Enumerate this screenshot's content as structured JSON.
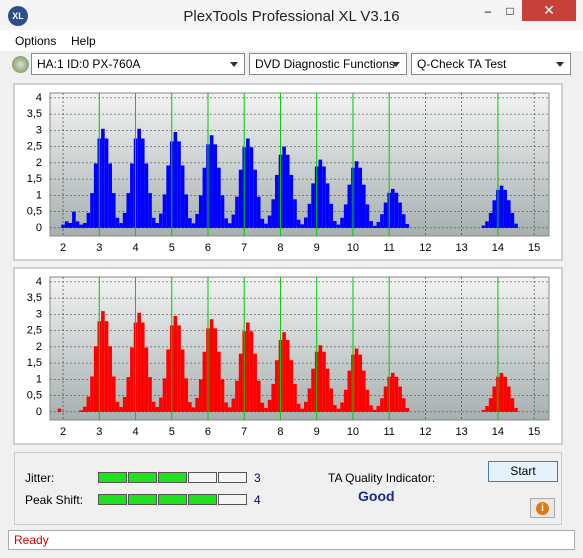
{
  "window": {
    "title": "PlexTools Professional XL V3.16",
    "icon": "XL"
  },
  "menu": [
    "Options",
    "Help"
  ],
  "toolbar": {
    "drive": "HA:1 ID:0  PX-760A",
    "function": "DVD Diagnostic Functions",
    "test": "Q-Check TA Test"
  },
  "chart_data": [
    {
      "type": "bar",
      "color": "#0000ff",
      "marker_color": "#00d000",
      "grid": true,
      "xlim": [
        1.64,
        15.41
      ],
      "ylim": [
        -0.25,
        4.15
      ],
      "xticks": [
        2,
        3,
        4,
        5,
        6,
        7,
        8,
        9,
        10,
        11,
        12,
        13,
        14,
        15
      ],
      "yticks": [
        0,
        {
          "value": 0.5,
          "label": "0,5"
        },
        1,
        {
          "value": 1.5,
          "label": "1,5"
        },
        2,
        {
          "value": 2.5,
          "label": "2,5"
        },
        3,
        {
          "value": 3.5,
          "label": "3,5"
        },
        4
      ],
      "markers": [
        3,
        4,
        5,
        6,
        7,
        8,
        9,
        10,
        11,
        14
      ],
      "x": [
        1.9,
        2.0,
        2.1,
        2.2,
        2.3,
        2.4,
        2.5,
        2.6,
        2.7,
        2.8,
        2.9,
        3.0,
        3.1,
        3.2,
        3.3,
        3.4,
        3.5,
        3.6,
        3.7,
        3.8,
        3.9,
        4.0,
        4.1,
        4.2,
        4.3,
        4.4,
        4.5,
        4.6,
        4.7,
        4.8,
        4.9,
        5.0,
        5.1,
        5.2,
        5.3,
        5.4,
        5.5,
        5.6,
        5.7,
        5.8,
        5.9,
        6.0,
        6.1,
        6.2,
        6.3,
        6.4,
        6.5,
        6.6,
        6.7,
        6.8,
        6.9,
        7.0,
        7.1,
        7.2,
        7.3,
        7.4,
        7.5,
        7.6,
        7.7,
        7.8,
        7.9,
        8.0,
        8.1,
        8.2,
        8.3,
        8.4,
        8.5,
        8.6,
        8.7,
        8.8,
        8.9,
        9.0,
        9.1,
        9.2,
        9.3,
        9.4,
        9.5,
        9.6,
        9.7,
        9.8,
        9.9,
        10.0,
        10.1,
        10.2,
        10.3,
        10.4,
        10.5,
        10.6,
        10.7,
        10.8,
        10.9,
        11.0,
        11.1,
        11.2,
        11.3,
        11.4,
        11.5,
        11.6,
        11.7,
        11.8,
        11.9,
        12.0,
        12.1,
        12.2,
        12.3,
        12.4,
        12.5,
        12.6,
        12.7,
        12.8,
        12.9,
        13.0,
        13.1,
        13.2,
        13.3,
        13.4,
        13.5,
        13.6,
        13.7,
        13.8,
        13.9,
        14.0,
        14.1,
        14.2,
        14.3,
        14.4,
        14.5
      ],
      "values": [
        0,
        0.1,
        0.2,
        0.15,
        0.5,
        0.2,
        0.1,
        0.15,
        0.46,
        1.07,
        1.98,
        2.75,
        3.05,
        2.75,
        1.98,
        1.07,
        0.31,
        0.15,
        0.46,
        1.07,
        1.98,
        2.75,
        3.05,
        2.75,
        1.98,
        1.07,
        0.31,
        0.15,
        0.44,
        1.03,
        1.92,
        2.66,
        2.95,
        2.66,
        1.92,
        1.03,
        0.3,
        0.14,
        0.43,
        1.0,
        1.85,
        2.57,
        2.85,
        2.57,
        1.85,
        1.0,
        0.29,
        0.14,
        0.41,
        0.96,
        1.79,
        2.48,
        2.75,
        2.48,
        1.79,
        0.96,
        0.28,
        0.13,
        0.38,
        0.88,
        1.63,
        2.25,
        2.5,
        2.25,
        1.63,
        0.88,
        0.25,
        0.11,
        0.32,
        0.74,
        1.37,
        1.89,
        2.1,
        1.89,
        1.37,
        0.74,
        0.21,
        0.1,
        0.31,
        0.72,
        1.33,
        1.85,
        2.05,
        1.85,
        1.33,
        0.72,
        0.21,
        0.06,
        0.18,
        0.42,
        0.78,
        1.08,
        1.2,
        1.08,
        0.78,
        0.42,
        0.12,
        0,
        0,
        0,
        0,
        0,
        0,
        0,
        0,
        0,
        0,
        0,
        0,
        0,
        0,
        0,
        0,
        0,
        0,
        0,
        0,
        0.07,
        0.2,
        0.46,
        0.85,
        1.17,
        1.3,
        1.17,
        0.85,
        0.46,
        0.13
      ]
    },
    {
      "type": "bar",
      "color": "#ff0000",
      "marker_color": "#00d000",
      "grid": true,
      "xlim": [
        1.64,
        15.41
      ],
      "ylim": [
        -0.25,
        4.15
      ],
      "xticks": [
        2,
        3,
        4,
        5,
        6,
        7,
        8,
        9,
        10,
        11,
        12,
        13,
        14,
        15
      ],
      "yticks": [
        0,
        {
          "value": 0.5,
          "label": "0,5"
        },
        1,
        {
          "value": 1.5,
          "label": "1,5"
        },
        2,
        {
          "value": 2.5,
          "label": "2,5"
        },
        3,
        {
          "value": 3.5,
          "label": "3,5"
        },
        4
      ],
      "markers": [
        3,
        4,
        5,
        6,
        7,
        8,
        9,
        10,
        11,
        14
      ],
      "x": [
        1.9,
        2.0,
        2.1,
        2.2,
        2.3,
        2.4,
        2.5,
        2.6,
        2.7,
        2.8,
        2.9,
        3.0,
        3.1,
        3.2,
        3.3,
        3.4,
        3.5,
        3.6,
        3.7,
        3.8,
        3.9,
        4.0,
        4.1,
        4.2,
        4.3,
        4.4,
        4.5,
        4.6,
        4.7,
        4.8,
        4.9,
        5.0,
        5.1,
        5.2,
        5.3,
        5.4,
        5.5,
        5.6,
        5.7,
        5.8,
        5.9,
        6.0,
        6.1,
        6.2,
        6.3,
        6.4,
        6.5,
        6.6,
        6.7,
        6.8,
        6.9,
        7.0,
        7.1,
        7.2,
        7.3,
        7.4,
        7.5,
        7.6,
        7.7,
        7.8,
        7.9,
        8.0,
        8.1,
        8.2,
        8.3,
        8.4,
        8.5,
        8.6,
        8.7,
        8.8,
        8.9,
        9.0,
        9.1,
        9.2,
        9.3,
        9.4,
        9.5,
        9.6,
        9.7,
        9.8,
        9.9,
        10.0,
        10.1,
        10.2,
        10.3,
        10.4,
        10.5,
        10.6,
        10.7,
        10.8,
        10.9,
        11.0,
        11.1,
        11.2,
        11.3,
        11.4,
        11.5,
        11.6,
        11.7,
        11.8,
        11.9,
        12.0,
        12.1,
        12.2,
        12.3,
        12.4,
        12.5,
        12.6,
        12.7,
        12.8,
        12.9,
        13.0,
        13.1,
        13.2,
        13.3,
        13.4,
        13.5,
        13.6,
        13.7,
        13.8,
        13.9,
        14.0,
        14.1,
        14.2,
        14.3,
        14.4,
        14.5
      ],
      "values": [
        0.1,
        0,
        0,
        0,
        0,
        0,
        0.05,
        0.16,
        0.47,
        1.09,
        2.02,
        2.79,
        3.1,
        2.79,
        2.02,
        1.09,
        0.31,
        0.15,
        0.46,
        1.07,
        1.98,
        2.75,
        3.05,
        2.75,
        1.98,
        1.07,
        0.31,
        0.15,
        0.44,
        1.03,
        1.92,
        2.66,
        2.95,
        2.66,
        1.92,
        1.03,
        0.3,
        0.14,
        0.43,
        1.0,
        1.85,
        2.57,
        2.85,
        2.57,
        1.85,
        1.0,
        0.29,
        0.14,
        0.41,
        0.96,
        1.79,
        2.48,
        2.75,
        2.48,
        1.79,
        0.96,
        0.28,
        0.12,
        0.37,
        0.86,
        1.59,
        2.21,
        2.45,
        2.21,
        1.59,
        0.86,
        0.25,
        0.1,
        0.31,
        0.72,
        1.33,
        1.85,
        2.05,
        1.85,
        1.33,
        0.72,
        0.21,
        0.1,
        0.29,
        0.68,
        1.27,
        1.76,
        1.95,
        1.76,
        1.27,
        0.68,
        0.2,
        0.06,
        0.18,
        0.42,
        0.78,
        1.08,
        1.2,
        1.08,
        0.78,
        0.42,
        0.12,
        0,
        0,
        0,
        0,
        0,
        0,
        0,
        0,
        0,
        0,
        0,
        0,
        0,
        0,
        0,
        0,
        0,
        0,
        0,
        0,
        0.06,
        0.18,
        0.42,
        0.78,
        1.08,
        1.2,
        1.08,
        0.78,
        0.42,
        0.12
      ]
    }
  ],
  "results": {
    "jitter": {
      "label": "Jitter:",
      "value": 3
    },
    "peak_shift": {
      "label": "Peak Shift:",
      "value": 4
    },
    "quality_label": "TA Quality Indicator:",
    "quality": "Good",
    "start": "Start"
  },
  "status": "Ready"
}
